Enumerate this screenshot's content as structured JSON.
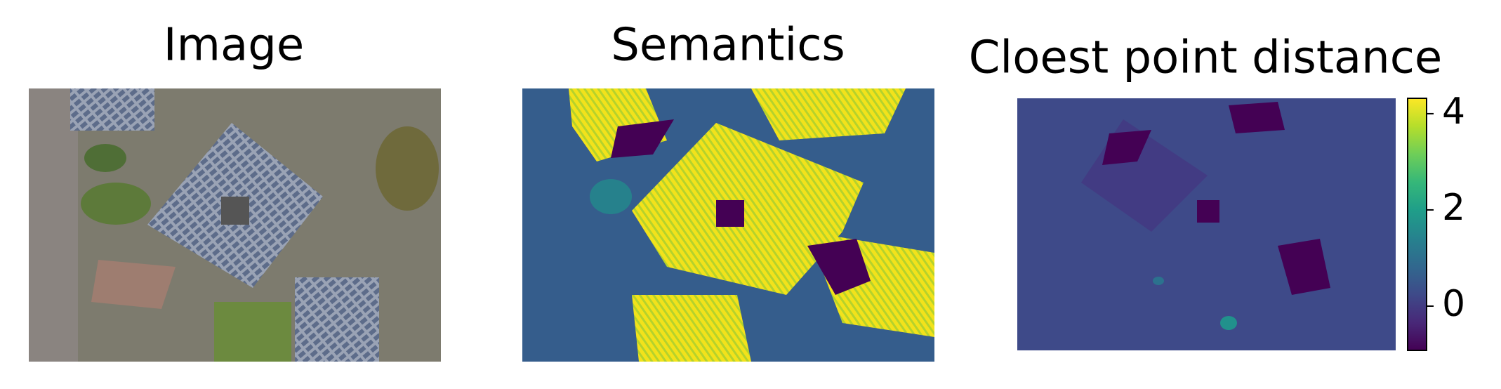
{
  "panels": [
    {
      "title": "Image"
    },
    {
      "title": "Semantics"
    },
    {
      "title": "Cloest point distance",
      "colorbar": {
        "type": "colorbar",
        "colormap": "viridis",
        "ylim": [
          -0.92,
          4.32
        ],
        "yticks": [
          0,
          2,
          4
        ]
      }
    }
  ]
}
